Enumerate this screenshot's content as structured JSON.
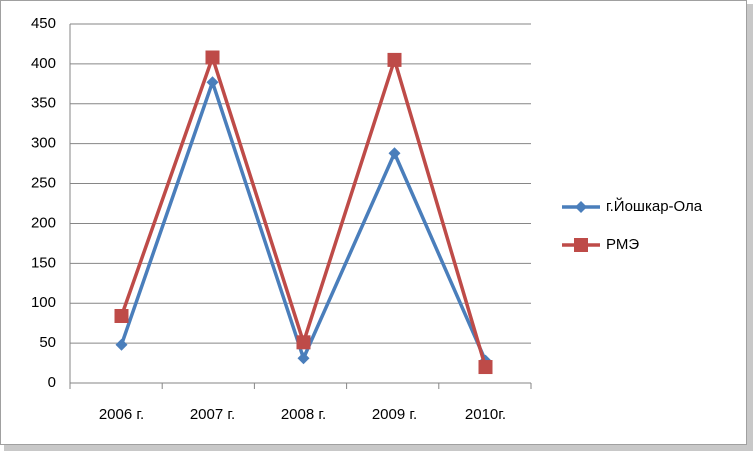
{
  "chart_data": {
    "type": "line",
    "categories": [
      "2006 г.",
      "2007 г.",
      "2008 г.",
      "2009 г.",
      "2010г."
    ],
    "series": [
      {
        "name": "г.Йошкар-Ола",
        "color": "#4a7ebb",
        "marker": "diamond",
        "values": [
          48,
          377,
          31,
          288,
          28
        ]
      },
      {
        "name": "РМЭ",
        "color": "#be4b48",
        "marker": "square",
        "values": [
          84,
          408,
          51,
          405,
          20
        ]
      }
    ],
    "ylim": [
      0,
      450
    ],
    "yticks": [
      0,
      50,
      100,
      150,
      200,
      250,
      300,
      350,
      400,
      450
    ],
    "grid": true,
    "legend": "right"
  }
}
